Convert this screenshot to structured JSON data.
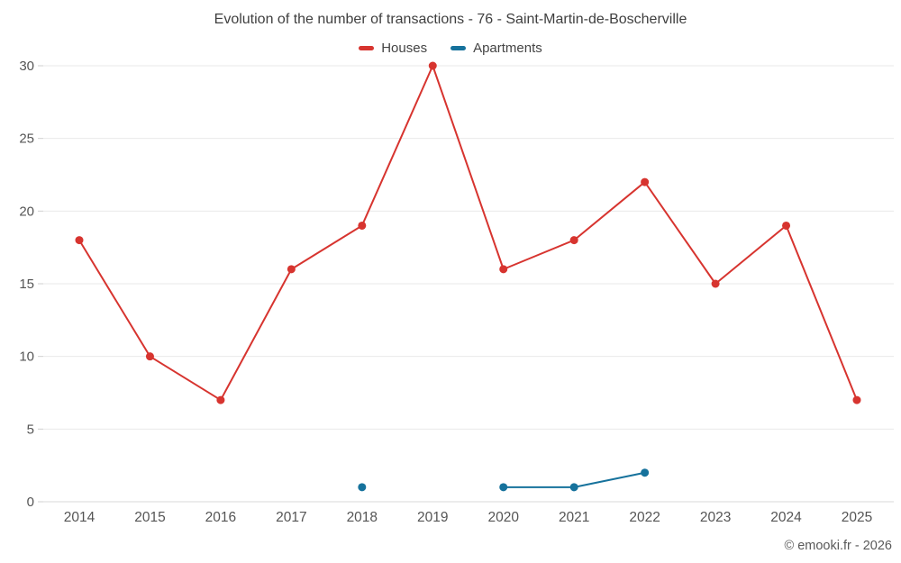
{
  "chart_data": {
    "type": "line",
    "title": "Evolution of the number of transactions - 76 - Saint-Martin-de-Boscherville",
    "categories": [
      "2014",
      "2015",
      "2016",
      "2017",
      "2018",
      "2019",
      "2020",
      "2021",
      "2022",
      "2023",
      "2024",
      "2025"
    ],
    "series": [
      {
        "name": "Houses",
        "color": "#d7342f",
        "values": [
          18,
          10,
          7,
          16,
          19,
          30,
          16,
          18,
          22,
          15,
          19,
          7
        ]
      },
      {
        "name": "Apartments",
        "color": "#16729c",
        "values": [
          null,
          null,
          null,
          null,
          1,
          null,
          1,
          1,
          2,
          null,
          null,
          null
        ]
      }
    ],
    "ylim": [
      0,
      30
    ],
    "yticks": [
      0,
      5,
      10,
      15,
      20,
      25,
      30
    ],
    "grid": true,
    "legend_position": "top"
  },
  "footer": {
    "copyright": "© emooki.fr - 2026"
  }
}
